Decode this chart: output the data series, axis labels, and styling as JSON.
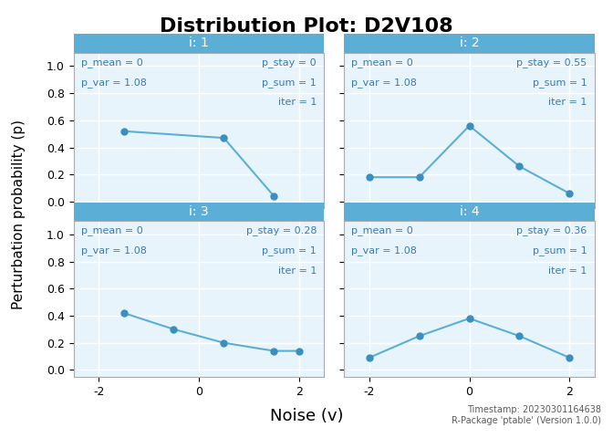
{
  "title": "Distribution Plot: D2V108",
  "xlabel": "Noise (v)",
  "ylabel": "Perturbation probability (p)",
  "timestamp_line1": "Timestamp: 20230301164638",
  "timestamp_line2": "R-Package 'ptable' (Version 1.0.0)",
  "subplots": [
    {
      "label": "i: 1",
      "x": [
        -1.5,
        0.5,
        1.5
      ],
      "y": [
        0.52,
        0.47,
        0.04
      ],
      "p_mean": 0,
      "p_var": 1.08,
      "p_stay": 0,
      "p_sum": 1,
      "iter": 1
    },
    {
      "label": "i: 2",
      "x": [
        -2,
        -1,
        0,
        1,
        2
      ],
      "y": [
        0.18,
        0.18,
        0.56,
        0.26,
        0.06
      ],
      "p_mean": 0,
      "p_var": 1.08,
      "p_stay": 0.55,
      "p_sum": 1,
      "iter": 1
    },
    {
      "label": "i: 3",
      "x": [
        -1.5,
        -0.5,
        0.5,
        1.5,
        2
      ],
      "y": [
        0.42,
        0.3,
        0.2,
        0.14,
        0.14
      ],
      "p_mean": 0,
      "p_var": 1.08,
      "p_stay": 0.28,
      "p_sum": 1,
      "iter": 1
    },
    {
      "label": "i: 4",
      "x": [
        -2,
        -1,
        0,
        1,
        2
      ],
      "y": [
        0.09,
        0.25,
        0.38,
        0.25,
        0.09
      ],
      "p_mean": 0,
      "p_var": 1.08,
      "p_stay": 0.36,
      "p_sum": 1,
      "iter": 1
    }
  ],
  "line_color": "#5bafd6",
  "marker_color": "#3a8fbf",
  "header_bg": "#5bafd6",
  "header_text_color": "white",
  "plot_bg": "#e8f4fc",
  "grid_color": "white",
  "annotation_color": "#3a7ab0",
  "ylim": [
    -0.05,
    1.1
  ],
  "xlim": [
    -2.5,
    2.5
  ],
  "xticks": [
    -2,
    0,
    2
  ],
  "yticks": [
    0.0,
    0.2,
    0.4,
    0.6,
    0.8,
    1.0
  ]
}
